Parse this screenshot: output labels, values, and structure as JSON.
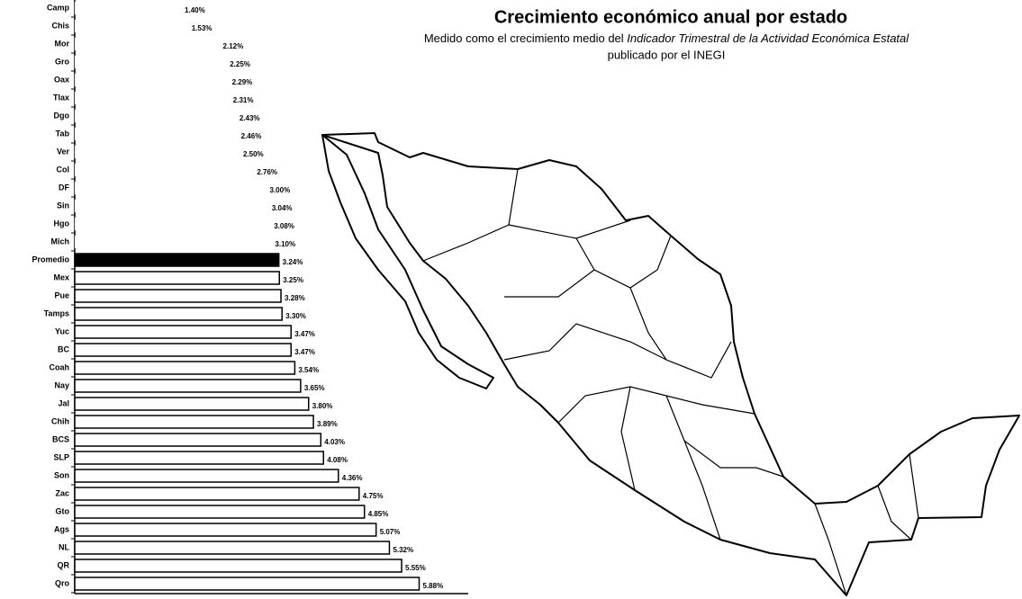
{
  "chart_data": {
    "type": "barh",
    "title": "Crecimiento económico anual por estado",
    "subtitle_parts": [
      "Medido como el crecimiento medio del",
      "Indicador Trimestral de la Actividad Económica Estatal",
      "publicado por el INEGI"
    ],
    "categories": [
      "Camp",
      "Chis",
      "Mor",
      "Gro",
      "Oax",
      "Tlax",
      "Dgo",
      "Tab",
      "Ver",
      "Col",
      "DF",
      "Sin",
      "Hgo",
      "Mich",
      "Promedio",
      "Mex",
      "Pue",
      "Tamps",
      "Yuc",
      "BC",
      "Coah",
      "Nay",
      "Jal",
      "Chih",
      "BCS",
      "SLP",
      "Son",
      "Zac",
      "Gto",
      "Ags",
      "NL",
      "QR",
      "Qro"
    ],
    "values": [
      1.4,
      1.53,
      2.12,
      2.25,
      2.29,
      2.31,
      2.43,
      2.46,
      2.5,
      2.76,
      3.0,
      3.04,
      3.08,
      3.1,
      3.24,
      3.25,
      3.28,
      3.3,
      3.47,
      3.47,
      3.54,
      3.65,
      3.8,
      3.89,
      4.03,
      4.08,
      4.36,
      4.75,
      4.85,
      5.07,
      5.32,
      5.55,
      5.88
    ],
    "value_labels": [
      "1.40%",
      "1.53%",
      "2.12%",
      "2.25%",
      "2.29%",
      "2.31%",
      "2.43%",
      "2.46%",
      "2.50%",
      "2.76%",
      "3.00%",
      "3.04%",
      "3.08%",
      "3.10%",
      "3.24%",
      "3.25%",
      "3.28%",
      "3.30%",
      "3.47%",
      "3.47%",
      "3.54%",
      "3.65%",
      "3.80%",
      "3.89%",
      "4.03%",
      "4.08%",
      "4.36%",
      "4.75%",
      "4.85%",
      "5.07%",
      "5.32%",
      "5.55%",
      "5.88%"
    ],
    "bar_colors": [
      "#ffffff",
      "#ffffff",
      "#ffffff",
      "#ffffff",
      "#ffffff",
      "#ffffff",
      "#ffffff",
      "#ffffff",
      "#ffffff",
      "#ffffff",
      "#ffffff",
      "#ffffff",
      "#ffffff",
      "#ffffff",
      "#000000",
      "#ffffff",
      "#ffffff",
      "#ffffff",
      "#ffffff",
      "#ffffff",
      "#ffffff",
      "#ffffff",
      "#ffffff",
      "#ffffff",
      "#ffffff",
      "#ffffff",
      "#ffffff",
      "#ffffff",
      "#ffffff",
      "#ffffff",
      "#ffffff",
      "#ffffff",
      "#ffffff"
    ],
    "edge_colors": [
      "none",
      "none",
      "none",
      "none",
      "none",
      "none",
      "none",
      "none",
      "none",
      "none",
      "none",
      "none",
      "none",
      "none",
      "#000000",
      "#000000",
      "#000000",
      "#000000",
      "#000000",
      "#000000",
      "#000000",
      "#000000",
      "#000000",
      "#000000",
      "#000000",
      "#000000",
      "#000000",
      "#000000",
      "#000000",
      "#000000",
      "#000000",
      "#000000",
      "#000000"
    ],
    "xlim": [
      -0.6,
      6.6
    ]
  }
}
